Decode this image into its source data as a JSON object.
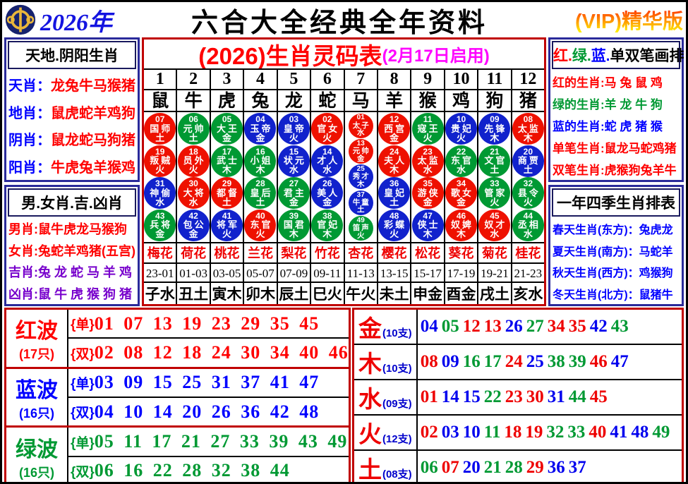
{
  "colors": {
    "red": "#ee1100",
    "blue": "#1122cc",
    "green": "#009933"
  },
  "textColors": {
    "red": "#ee0000",
    "blue": "#0000ee",
    "green": "#009933"
  },
  "header": {
    "year": "2026年",
    "title": "六合大全经典全年资料",
    "vip": "(VIP)精华版"
  },
  "left_top": {
    "title": "天地.阴阳生肖",
    "rows": [
      {
        "label": "天肖：",
        "lc": "#0000ff",
        "value": "龙兔牛马猴猪",
        "vc": "#ff0000"
      },
      {
        "label": "地肖：",
        "lc": "#0000ff",
        "value": "鼠虎蛇羊鸡狗",
        "vc": "#ff0000"
      },
      {
        "label": "阴肖：",
        "lc": "#0000ff",
        "value": "鼠龙蛇马狗猪",
        "vc": "#ff0000"
      },
      {
        "label": "阳肖：",
        "lc": "#0000ff",
        "value": "牛虎兔羊猴鸡",
        "vc": "#ff0000"
      }
    ]
  },
  "left_bottom": {
    "title": "男.女肖.吉.凶肖",
    "rows": [
      {
        "label": "男肖:",
        "lc": "#ff0000",
        "value": "鼠牛虎龙马猴狗",
        "vc": "#ff0000"
      },
      {
        "label": "女肖:",
        "lc": "#ff0000",
        "value": "兔蛇羊鸡猪(五宫)",
        "vc": "#ff0000"
      },
      {
        "label": "吉肖:",
        "lc": "#7700cc",
        "value": "兔 龙 蛇 马 羊 鸡",
        "vc": "#7700cc"
      },
      {
        "label": "凶肖:",
        "lc": "#7700cc",
        "value": "鼠 牛 虎 猴 狗 猪",
        "vc": "#7700cc"
      }
    ]
  },
  "right_top": {
    "title_parts": [
      {
        "text": "红.",
        "color": "#ff0000"
      },
      {
        "text": "绿.",
        "color": "#009933"
      },
      {
        "text": "蓝.",
        "color": "#0000ff"
      },
      {
        "text": "单双笔画排肖表",
        "color": "#000000"
      }
    ],
    "rows": [
      {
        "label": "红的生肖:",
        "lc": "#ff0000",
        "value": "马 兔 鼠 鸡",
        "vc": "#ff0000"
      },
      {
        "label": "绿的生肖:",
        "lc": "#009933",
        "value": "羊 龙 牛 狗",
        "vc": "#009933"
      },
      {
        "label": "蓝的生肖:",
        "lc": "#0000ff",
        "value": "蛇 虎 猪 猴",
        "vc": "#0000ff"
      },
      {
        "label": "单笔生肖:",
        "lc": "#ff0000",
        "value": "鼠龙马蛇鸡猪",
        "vc": "#ff0000"
      },
      {
        "label": "双笔生肖:",
        "lc": "#ff0000",
        "value": "虎猴狗兔羊牛",
        "vc": "#ff0000"
      }
    ]
  },
  "right_bottom": {
    "title": "一年四季生肖排表",
    "rows": [
      {
        "label": "春天生肖(东方)：",
        "lc": "#0000ff",
        "value": "兔虎龙",
        "vc": "#0000ff"
      },
      {
        "label": "夏天生肖(南方)：",
        "lc": "#0000ff",
        "value": "马蛇羊",
        "vc": "#0000ff"
      },
      {
        "label": "秋天生肖(西方)：",
        "lc": "#0000ff",
        "value": "鸡猴狗",
        "vc": "#0000ff"
      },
      {
        "label": "冬天生肖(北方)：",
        "lc": "#0000ff",
        "value": "鼠猪牛",
        "vc": "#0000ff"
      }
    ]
  },
  "center": {
    "title_main": "(2026)生肖灵码表",
    "title_sub": "(2月17日启用)",
    "col_numbers": [
      "1",
      "2",
      "3",
      "4",
      "5",
      "6",
      "7",
      "8",
      "9",
      "10",
      "11",
      "12"
    ],
    "zodiac": [
      "鼠",
      "牛",
      "虎",
      "兔",
      "龙",
      "蛇",
      "马",
      "羊",
      "猴",
      "鸡",
      "狗",
      "猪"
    ],
    "flowers": [
      "梅花",
      "荷花",
      "桃花",
      "兰花",
      "梨花",
      "竹花",
      "杏花",
      "樱花",
      "松花",
      "葵花",
      "菊花",
      "桂花"
    ],
    "hours": [
      "23-01",
      "01-03",
      "03-05",
      "05-07",
      "07-09",
      "09-11",
      "11-13",
      "13-15",
      "15-17",
      "17-19",
      "19-21",
      "21-23"
    ],
    "branches": [
      "子水",
      "丑土",
      "寅木",
      "卯木",
      "辰土",
      "巳火",
      "午火",
      "未土",
      "申金",
      "酉金",
      "戌土",
      "亥水"
    ],
    "columns": [
      {
        "circles": [
          {
            "num": "07",
            "name": "国师",
            "elem": "土",
            "color": "red"
          },
          {
            "num": "19",
            "name": "叛贼",
            "elem": "火",
            "color": "red"
          },
          {
            "num": "31",
            "name": "神偷",
            "elem": "水",
            "color": "blue"
          },
          {
            "num": "43",
            "name": "兵将",
            "elem": "金",
            "color": "green"
          }
        ]
      },
      {
        "circles": [
          {
            "num": "06",
            "name": "元帅",
            "elem": "土",
            "color": "green"
          },
          {
            "num": "18",
            "name": "员外",
            "elem": "火",
            "color": "red"
          },
          {
            "num": "30",
            "name": "大将",
            "elem": "水",
            "color": "red"
          },
          {
            "num": "42",
            "name": "包公",
            "elem": "金",
            "color": "blue"
          }
        ]
      },
      {
        "circles": [
          {
            "num": "05",
            "name": "大王",
            "elem": "金",
            "color": "green"
          },
          {
            "num": "17",
            "name": "武士",
            "elem": "木",
            "color": "green"
          },
          {
            "num": "29",
            "name": "都督",
            "elem": "土",
            "color": "red"
          },
          {
            "num": "41",
            "name": "将军",
            "elem": "火",
            "color": "blue"
          }
        ]
      },
      {
        "circles": [
          {
            "num": "04",
            "name": "玉帝",
            "elem": "金",
            "color": "blue"
          },
          {
            "num": "16",
            "name": "小姐",
            "elem": "木",
            "color": "green"
          },
          {
            "num": "28",
            "name": "皇后",
            "elem": "土",
            "color": "green"
          },
          {
            "num": "40",
            "name": "东官",
            "elem": "火",
            "color": "red"
          }
        ]
      },
      {
        "circles": [
          {
            "num": "03",
            "name": "皇帝",
            "elem": "火",
            "color": "blue"
          },
          {
            "num": "15",
            "name": "状元",
            "elem": "水",
            "color": "blue"
          },
          {
            "num": "27",
            "name": "君主",
            "elem": "金",
            "color": "green"
          },
          {
            "num": "39",
            "name": "国君",
            "elem": "木",
            "color": "green"
          }
        ]
      },
      {
        "circles": [
          {
            "num": "02",
            "name": "官女",
            "elem": "火",
            "color": "red"
          },
          {
            "num": "14",
            "name": "才人",
            "elem": "水",
            "color": "blue"
          },
          {
            "num": "26",
            "name": "美人",
            "elem": "金",
            "color": "blue"
          },
          {
            "num": "38",
            "name": "官妃",
            "elem": "木",
            "color": "green"
          }
        ]
      },
      {
        "circles": [
          {
            "num": "01",
            "name": "太子",
            "elem": "水",
            "color": "red"
          },
          {
            "num": "13",
            "name": "元帅",
            "elem": "金",
            "color": "red"
          },
          {
            "num": "25",
            "name": "秀才",
            "elem": "木",
            "color": "blue"
          },
          {
            "num": "37",
            "name": "牛童",
            "elem": "土",
            "color": "blue"
          },
          {
            "num": "49",
            "name": "笛声",
            "elem": "火",
            "color": "green"
          }
        ]
      },
      {
        "circles": [
          {
            "num": "12",
            "name": "西宫",
            "elem": "金",
            "color": "red"
          },
          {
            "num": "24",
            "name": "夫人",
            "elem": "木",
            "color": "red"
          },
          {
            "num": "36",
            "name": "皇妃",
            "elem": "土",
            "color": "blue"
          },
          {
            "num": "48",
            "name": "彩蝶",
            "elem": "火",
            "color": "blue"
          }
        ]
      },
      {
        "circles": [
          {
            "num": "11",
            "name": "寇王",
            "elem": "火",
            "color": "green"
          },
          {
            "num": "23",
            "name": "太监",
            "elem": "水",
            "color": "red"
          },
          {
            "num": "35",
            "name": "游侠",
            "elem": "金",
            "color": "red"
          },
          {
            "num": "47",
            "name": "侠士",
            "elem": "木",
            "color": "blue"
          }
        ]
      },
      {
        "circles": [
          {
            "num": "10",
            "name": "贵妃",
            "elem": "火",
            "color": "blue"
          },
          {
            "num": "22",
            "name": "东官",
            "elem": "水",
            "color": "green"
          },
          {
            "num": "34",
            "name": "歌女",
            "elem": "金",
            "color": "red"
          },
          {
            "num": "46",
            "name": "奴婢",
            "elem": "木",
            "color": "red"
          }
        ]
      },
      {
        "circles": [
          {
            "num": "09",
            "name": "先锋",
            "elem": "木",
            "color": "blue"
          },
          {
            "num": "21",
            "name": "文官",
            "elem": "土",
            "color": "green"
          },
          {
            "num": "33",
            "name": "管家",
            "elem": "火",
            "color": "green"
          },
          {
            "num": "45",
            "name": "奴才",
            "elem": "水",
            "color": "red"
          }
        ]
      },
      {
        "circles": [
          {
            "num": "08",
            "name": "太监",
            "elem": "木",
            "color": "red"
          },
          {
            "num": "20",
            "name": "商贾",
            "elem": "土",
            "color": "blue"
          },
          {
            "num": "32",
            "name": "县令",
            "elem": "火",
            "color": "green"
          },
          {
            "num": "44",
            "name": "丞相",
            "elem": "水",
            "color": "green"
          }
        ]
      }
    ]
  },
  "waves": [
    {
      "name": "红波",
      "count": "(17只)",
      "color": "#ff0000",
      "odd_tag": "{单}",
      "odd": [
        "01",
        "07",
        "13",
        "19",
        "23",
        "29",
        "35",
        "45"
      ],
      "even_tag": "{双}",
      "even": [
        "02",
        "08",
        "12",
        "18",
        "24",
        "30",
        "34",
        "40",
        "46"
      ]
    },
    {
      "name": "蓝波",
      "count": "(16只)",
      "color": "#0000ff",
      "odd_tag": "{单}",
      "odd": [
        "03",
        "09",
        "15",
        "25",
        "31",
        "37",
        "41",
        "47"
      ],
      "even_tag": "{双}",
      "even": [
        "04",
        "10",
        "14",
        "20",
        "26",
        "36",
        "42",
        "48"
      ]
    },
    {
      "name": "绿波",
      "count": "(16只)",
      "color": "#009933",
      "odd_tag": "{单}",
      "odd": [
        "05",
        "11",
        "17",
        "21",
        "27",
        "33",
        "39",
        "43",
        "49"
      ],
      "even_tag": "{双}",
      "even": [
        "06",
        "16",
        "22",
        "28",
        "32",
        "38",
        "44"
      ]
    }
  ],
  "elements": [
    {
      "name": "金",
      "count": "(10支)",
      "numbers": [
        {
          "n": "04",
          "c": "blue"
        },
        {
          "n": "05",
          "c": "green"
        },
        {
          "n": "12",
          "c": "red"
        },
        {
          "n": "13",
          "c": "red"
        },
        {
          "n": "26",
          "c": "blue"
        },
        {
          "n": "27",
          "c": "green"
        },
        {
          "n": "34",
          "c": "red"
        },
        {
          "n": "35",
          "c": "red"
        },
        {
          "n": "42",
          "c": "blue"
        },
        {
          "n": "43",
          "c": "green"
        }
      ]
    },
    {
      "name": "木",
      "count": "(10支)",
      "numbers": [
        {
          "n": "08",
          "c": "red"
        },
        {
          "n": "09",
          "c": "blue"
        },
        {
          "n": "16",
          "c": "green"
        },
        {
          "n": "17",
          "c": "green"
        },
        {
          "n": "24",
          "c": "red"
        },
        {
          "n": "25",
          "c": "blue"
        },
        {
          "n": "38",
          "c": "green"
        },
        {
          "n": "39",
          "c": "green"
        },
        {
          "n": "46",
          "c": "red"
        },
        {
          "n": "47",
          "c": "blue"
        }
      ]
    },
    {
      "name": "水",
      "count": "(09支)",
      "numbers": [
        {
          "n": "01",
          "c": "red"
        },
        {
          "n": "14",
          "c": "blue"
        },
        {
          "n": "15",
          "c": "blue"
        },
        {
          "n": "22",
          "c": "green"
        },
        {
          "n": "23",
          "c": "red"
        },
        {
          "n": "30",
          "c": "red"
        },
        {
          "n": "31",
          "c": "blue"
        },
        {
          "n": "44",
          "c": "green"
        },
        {
          "n": "45",
          "c": "red"
        }
      ]
    },
    {
      "name": "火",
      "count": "(12支)",
      "numbers": [
        {
          "n": "02",
          "c": "red"
        },
        {
          "n": "03",
          "c": "blue"
        },
        {
          "n": "10",
          "c": "blue"
        },
        {
          "n": "11",
          "c": "green"
        },
        {
          "n": "18",
          "c": "red"
        },
        {
          "n": "19",
          "c": "red"
        },
        {
          "n": "32",
          "c": "green"
        },
        {
          "n": "33",
          "c": "green"
        },
        {
          "n": "40",
          "c": "red"
        },
        {
          "n": "41",
          "c": "blue"
        },
        {
          "n": "48",
          "c": "blue"
        },
        {
          "n": "49",
          "c": "green"
        }
      ]
    },
    {
      "name": "土",
      "count": "(08支)",
      "numbers": [
        {
          "n": "06",
          "c": "green"
        },
        {
          "n": "07",
          "c": "red"
        },
        {
          "n": "20",
          "c": "blue"
        },
        {
          "n": "21",
          "c": "green"
        },
        {
          "n": "28",
          "c": "green"
        },
        {
          "n": "29",
          "c": "red"
        },
        {
          "n": "36",
          "c": "blue"
        },
        {
          "n": "37",
          "c": "blue"
        }
      ]
    }
  ]
}
